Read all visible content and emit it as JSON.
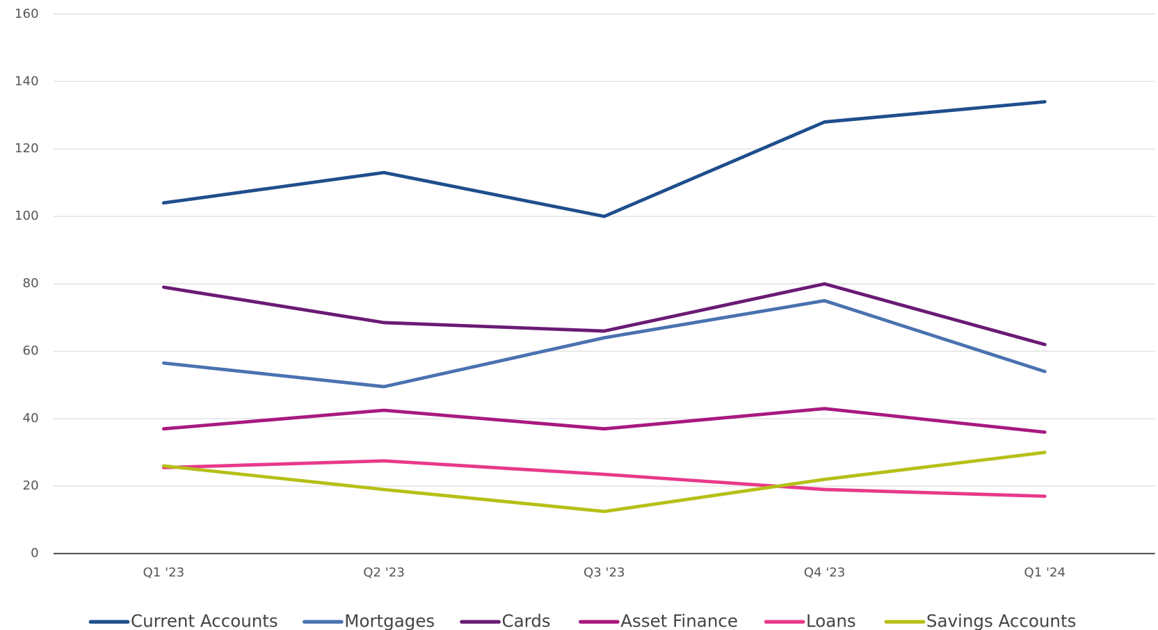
{
  "chart_data": {
    "type": "line",
    "categories": [
      "Q1 '23",
      "Q2 '23",
      "Q3 '23",
      "Q4 '23",
      "Q1 '24"
    ],
    "series": [
      {
        "name": "Current Accounts",
        "color": "#1f4e8c",
        "values": [
          104,
          113,
          100,
          128,
          134
        ]
      },
      {
        "name": "Mortgages",
        "color": "#4a72b0",
        "values": [
          56.5,
          49.5,
          64,
          75,
          54
        ]
      },
      {
        "name": "Cards",
        "color": "#6a1b74",
        "values": [
          79,
          68.5,
          66,
          80,
          62
        ]
      },
      {
        "name": "Asset Finance",
        "color": "#a8197f",
        "values": [
          37,
          42.5,
          37,
          43,
          36
        ]
      },
      {
        "name": "Loans",
        "color": "#e8398a",
        "values": [
          25.5,
          27.5,
          23.5,
          19,
          17
        ]
      },
      {
        "name": "Savings Accounts",
        "color": "#b5c017",
        "values": [
          26,
          19,
          12.5,
          22,
          30
        ]
      }
    ],
    "ylim": [
      0,
      160
    ],
    "yticks": [
      0,
      20,
      40,
      60,
      80,
      100,
      120,
      140,
      160
    ],
    "grid": true,
    "legend": "bottom"
  }
}
